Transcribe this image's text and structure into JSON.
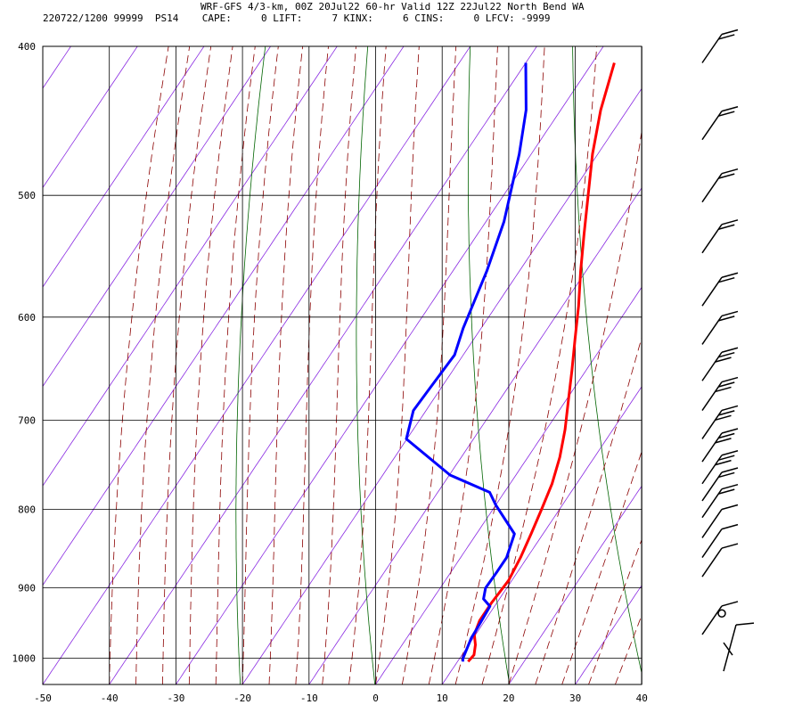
{
  "header": {
    "title": "WRF-GFS 4/3-km, 00Z 20Jul22 60-hr Valid 12Z 22Jul22 North Bend WA",
    "stats_line": "220722/1200 99999  PS14    CAPE:     0 LIFT:     7 KINX:     6 CINS:     0 LFCV: -9999"
  },
  "colors": {
    "temperature": "#ff0000",
    "dewpoint": "#0000ff",
    "dry_adiabat": "#006400",
    "moist_adiabat": "#8b0000",
    "isotherm": "#8a2be2",
    "grid": "#000000"
  },
  "chart_data": {
    "type": "line",
    "title": "",
    "xlabel": "",
    "ylabel": "",
    "x_ticks": [
      -50,
      -40,
      -30,
      -20,
      -10,
      0,
      10,
      20,
      30,
      40
    ],
    "y_ticks": [
      400,
      500,
      600,
      700,
      800,
      900,
      1000
    ],
    "xlim": [
      -50,
      40
    ],
    "ylim_pressure": [
      1040,
      400
    ],
    "y_scale": "log-pressure",
    "grid": true,
    "series": [
      {
        "key": "temperature",
        "points": [
          {
            "p": 1005,
            "t": 11.6
          },
          {
            "p": 995,
            "t": 11.8
          },
          {
            "p": 980,
            "t": 11.0
          },
          {
            "p": 965,
            "t": 9.8
          },
          {
            "p": 945,
            "t": 9.2
          },
          {
            "p": 920,
            "t": 9.2
          },
          {
            "p": 890,
            "t": 9.5
          },
          {
            "p": 860,
            "t": 9.0
          },
          {
            "p": 830,
            "t": 8.2
          },
          {
            "p": 800,
            "t": 7.3
          },
          {
            "p": 770,
            "t": 6.3
          },
          {
            "p": 740,
            "t": 4.8
          },
          {
            "p": 710,
            "t": 2.8
          },
          {
            "p": 680,
            "t": 0.4
          },
          {
            "p": 650,
            "t": -2.1
          },
          {
            "p": 620,
            "t": -4.8
          },
          {
            "p": 590,
            "t": -7.6
          },
          {
            "p": 560,
            "t": -10.8
          },
          {
            "p": 530,
            "t": -14.0
          },
          {
            "p": 500,
            "t": -17.3
          },
          {
            "p": 470,
            "t": -20.8
          },
          {
            "p": 440,
            "t": -24.0
          },
          {
            "p": 410,
            "t": -26.7
          }
        ]
      },
      {
        "key": "dewpoint",
        "points": [
          {
            "p": 1005,
            "t": 10.8
          },
          {
            "p": 1000,
            "t": 10.5
          },
          {
            "p": 970,
            "t": 9.7
          },
          {
            "p": 955,
            "t": 9.6
          },
          {
            "p": 925,
            "t": 9.3
          },
          {
            "p": 915,
            "t": 7.6
          },
          {
            "p": 900,
            "t": 6.8
          },
          {
            "p": 880,
            "t": 6.9
          },
          {
            "p": 860,
            "t": 6.9
          },
          {
            "p": 830,
            "t": 5.7
          },
          {
            "p": 795,
            "t": 0.0
          },
          {
            "p": 780,
            "t": -2.2
          },
          {
            "p": 760,
            "t": -9.9
          },
          {
            "p": 720,
            "t": -20.1
          },
          {
            "p": 690,
            "t": -21.9
          },
          {
            "p": 670,
            "t": -21.7
          },
          {
            "p": 635,
            "t": -21.3
          },
          {
            "p": 610,
            "t": -22.7
          },
          {
            "p": 560,
            "t": -24.9
          },
          {
            "p": 520,
            "t": -27.3
          },
          {
            "p": 470,
            "t": -31.8
          },
          {
            "p": 440,
            "t": -35.2
          },
          {
            "p": 410,
            "t": -40.0
          }
        ]
      }
    ],
    "wind_profile": [
      {
        "p": 410,
        "barbs": 2
      },
      {
        "p": 460,
        "barbs": 2
      },
      {
        "p": 505,
        "barbs": 2
      },
      {
        "p": 545,
        "barbs": 2
      },
      {
        "p": 590,
        "barbs": 2
      },
      {
        "p": 625,
        "barbs": 2
      },
      {
        "p": 660,
        "barbs": 3
      },
      {
        "p": 690,
        "barbs": 3
      },
      {
        "p": 720,
        "barbs": 3
      },
      {
        "p": 745,
        "barbs": 3
      },
      {
        "p": 770,
        "barbs": 3
      },
      {
        "p": 790,
        "barbs": 2
      },
      {
        "p": 810,
        "barbs": 2
      },
      {
        "p": 835,
        "barbs": 1
      },
      {
        "p": 860,
        "barbs": 1
      },
      {
        "p": 885,
        "barbs": 1
      },
      {
        "p": 935,
        "barbs": 0
      },
      {
        "p": 965,
        "barbs": 1
      }
    ]
  }
}
